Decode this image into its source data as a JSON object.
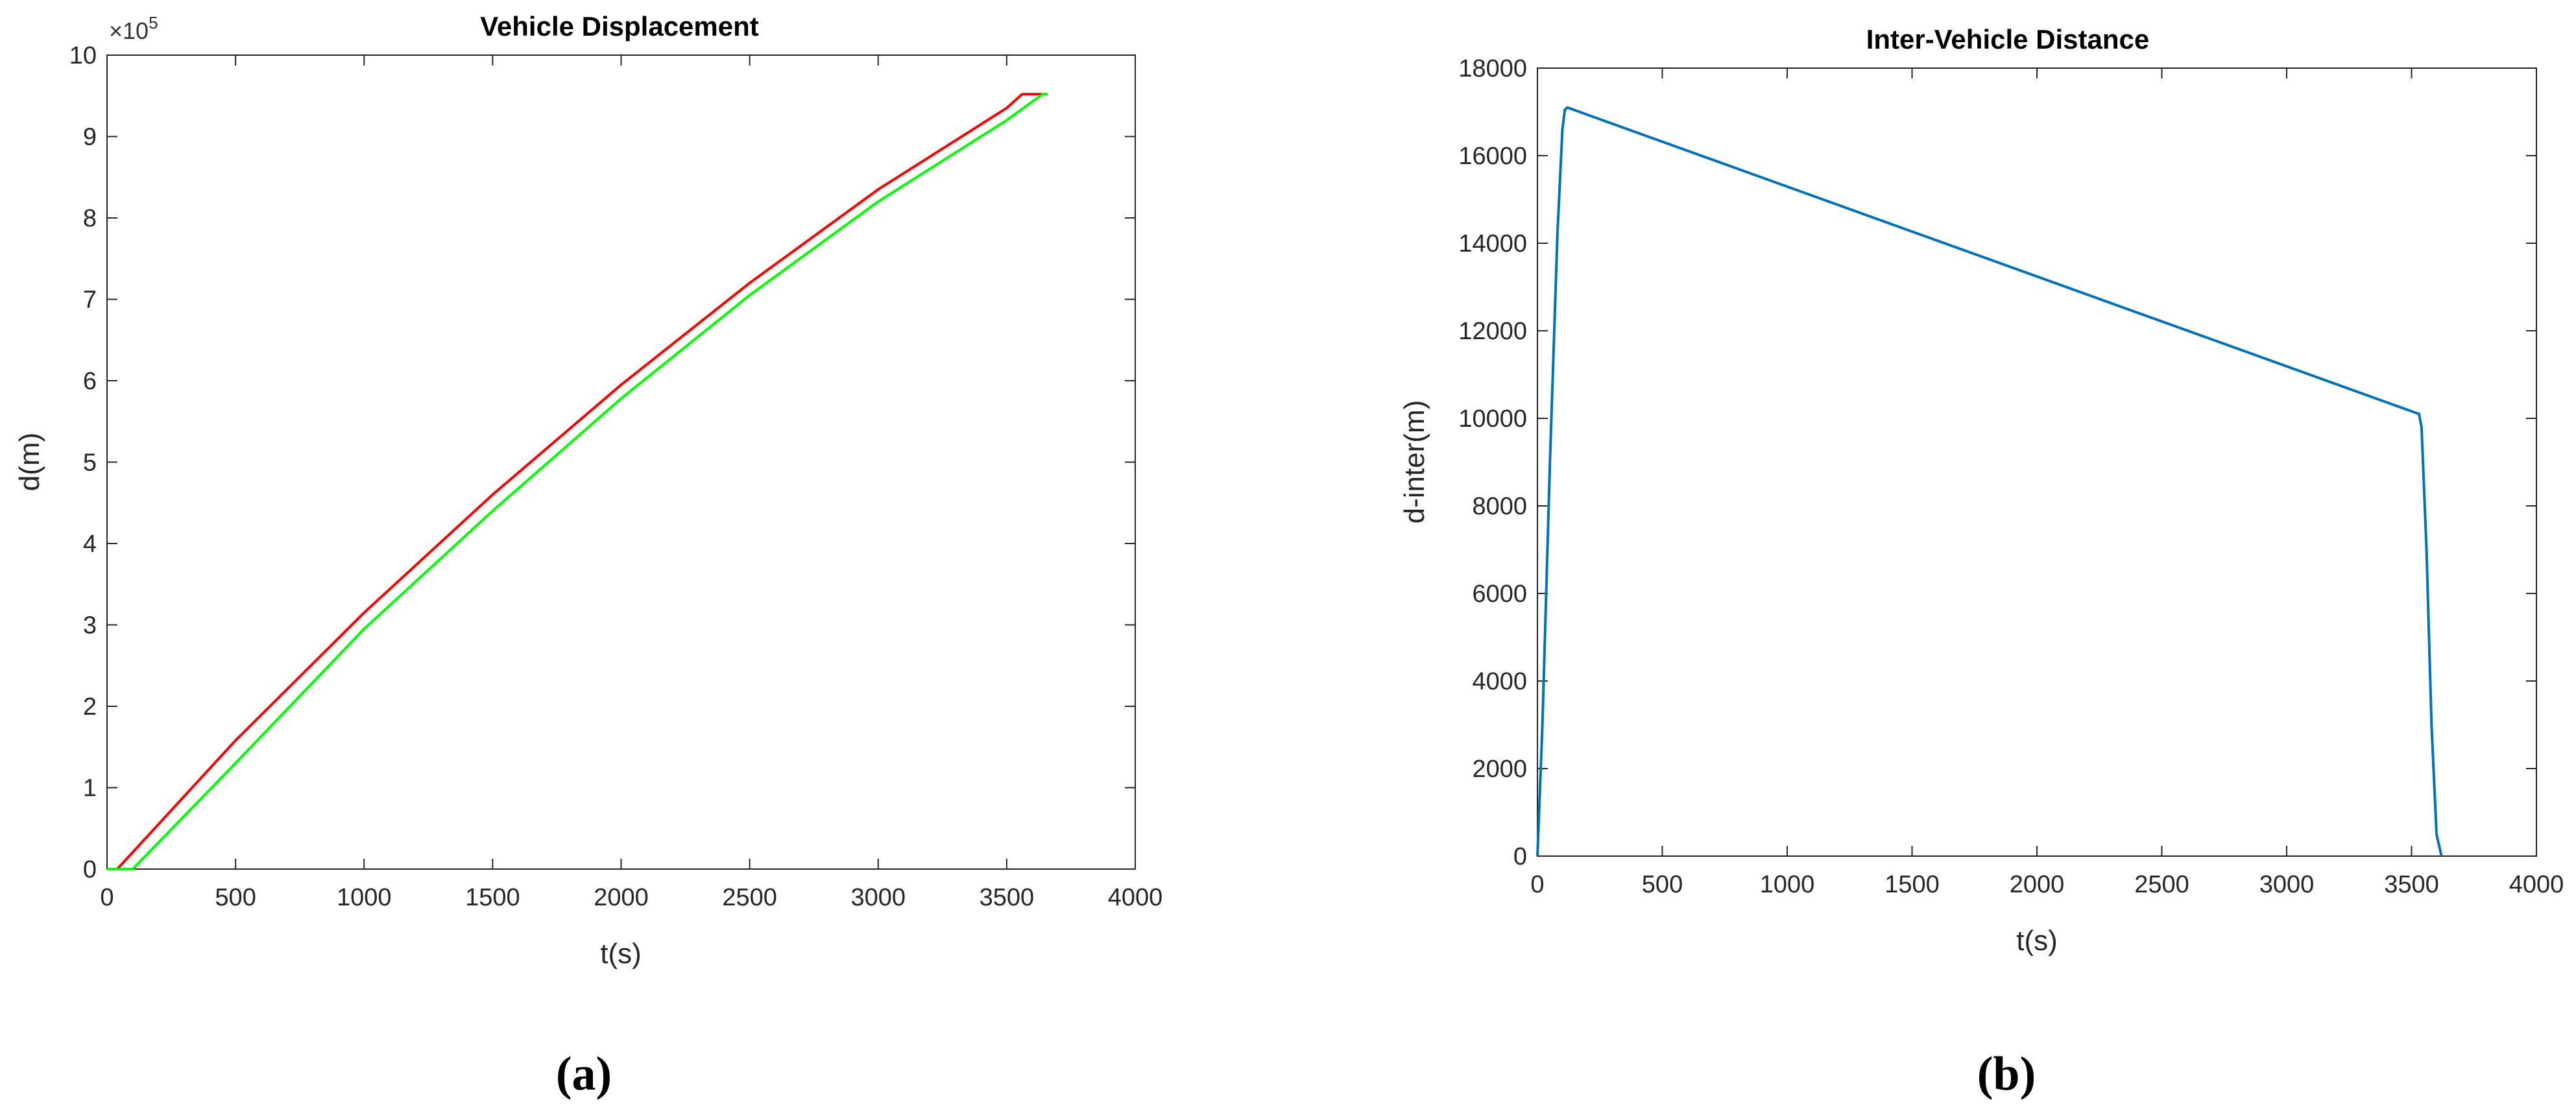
{
  "chart_data": [
    {
      "type": "line",
      "title": "Vehicle Displacement",
      "xlabel": "t(s)",
      "ylabel": "d(m)",
      "exponent_label": "×10",
      "exponent_power": "5",
      "xlim": [
        0,
        4000
      ],
      "ylim": [
        0,
        10
      ],
      "y_multiplier": 100000,
      "xticks": [
        "0",
        "500",
        "1000",
        "1500",
        "2000",
        "2500",
        "3000",
        "3500",
        "4000"
      ],
      "yticks": [
        "0",
        "1",
        "2",
        "3",
        "4",
        "5",
        "6",
        "7",
        "8",
        "9",
        "10"
      ],
      "grid": false,
      "series": [
        {
          "color": "#ff0000",
          "x": [
            0,
            40,
            500,
            1000,
            1500,
            2000,
            2500,
            3000,
            3500,
            3560,
            3640
          ],
          "y": [
            0,
            0,
            1.58,
            3.15,
            4.6,
            5.95,
            7.2,
            8.35,
            9.35,
            9.52,
            9.52
          ]
        },
        {
          "color": "#00ff00",
          "x": [
            0,
            100,
            500,
            1000,
            1500,
            2000,
            2500,
            3000,
            3500,
            3640,
            3660
          ],
          "y": [
            0,
            0,
            1.3,
            2.95,
            4.4,
            5.78,
            7.05,
            8.2,
            9.2,
            9.52,
            9.52
          ]
        }
      ]
    },
    {
      "type": "line",
      "title": "Inter-Vehicle Distance",
      "xlabel": "t(s)",
      "ylabel": "d-inter(m)",
      "xlim": [
        0,
        4000
      ],
      "ylim": [
        0,
        18000
      ],
      "xticks": [
        "0",
        "500",
        "1000",
        "1500",
        "2000",
        "2500",
        "3000",
        "3500",
        "4000"
      ],
      "yticks": [
        "0",
        "2000",
        "4000",
        "6000",
        "8000",
        "10000",
        "12000",
        "14000",
        "16000",
        "18000"
      ],
      "grid": false,
      "series": [
        {
          "color": "#0072bd",
          "x": [
            0,
            20,
            50,
            80,
            100,
            110,
            120,
            3530,
            3540,
            3560,
            3580,
            3600,
            3620
          ],
          "y": [
            0,
            3000,
            9000,
            14200,
            16600,
            17050,
            17100,
            10100,
            9800,
            7000,
            3000,
            500,
            0
          ]
        }
      ]
    }
  ],
  "captions": [
    "(a)",
    "(b)"
  ]
}
